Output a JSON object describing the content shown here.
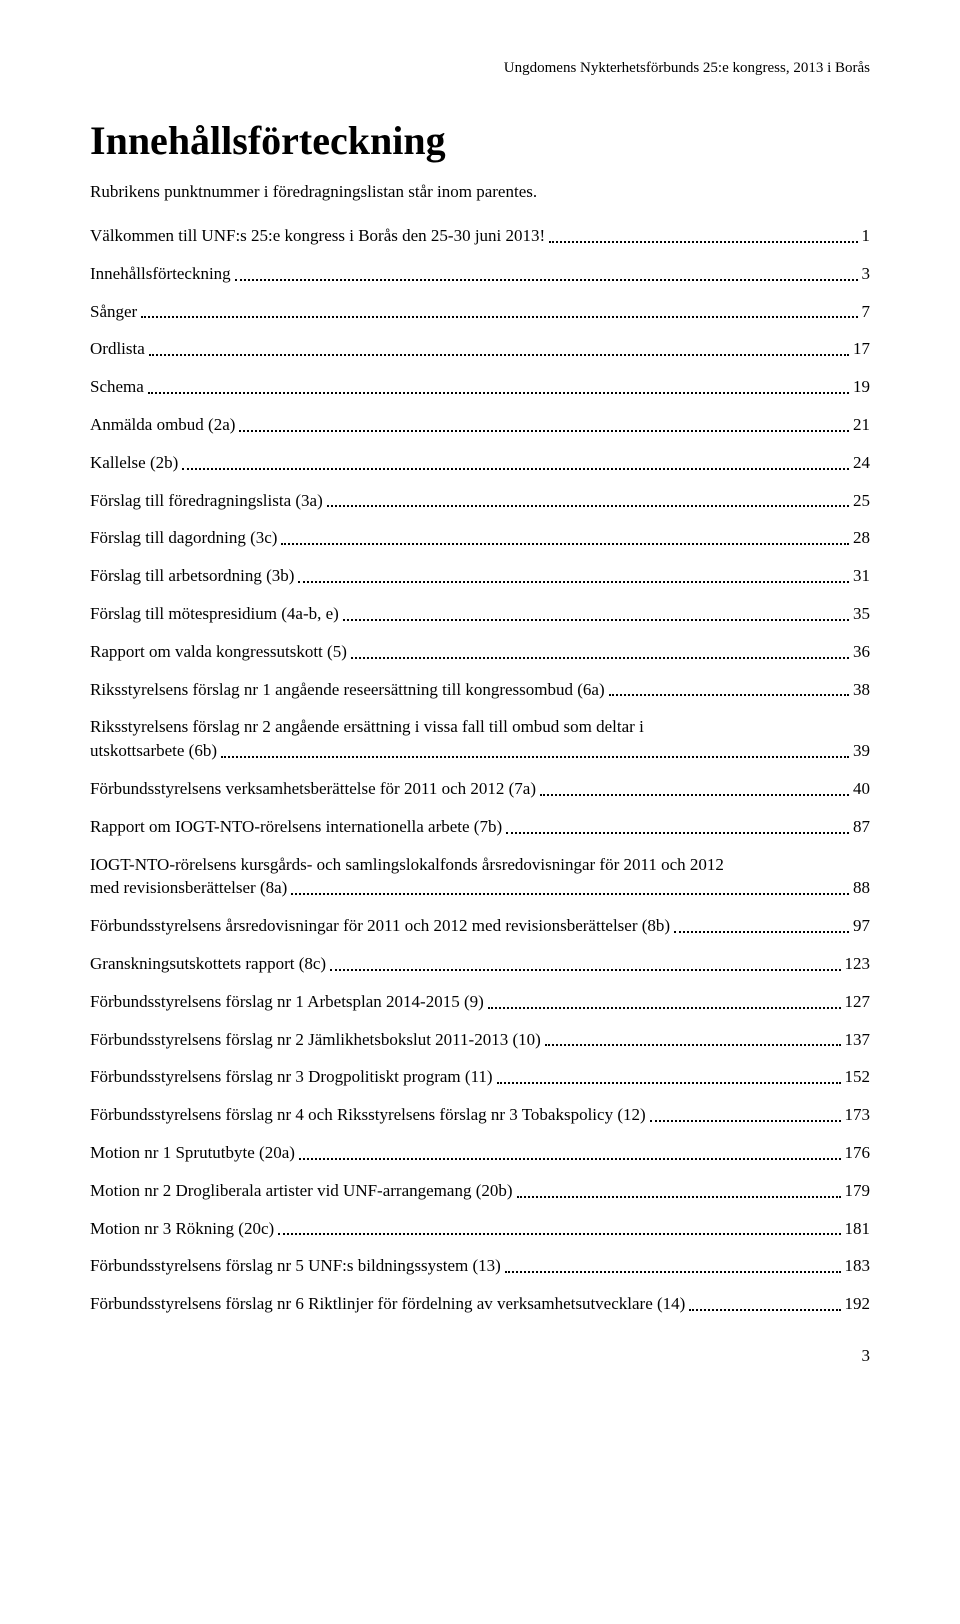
{
  "header": "Ungdomens Nykterhetsförbunds 25:e kongress, 2013 i Borås",
  "title": "Innehållsförteckning",
  "intro": "Rubrikens punktnummer i föredragningslistan står inom parentes.",
  "entries": [
    {
      "text": "Välkommen till UNF:s 25:e kongress i Borås den 25-30 juni 2013!",
      "page": "1"
    },
    {
      "text": "Innehållsförteckning",
      "page": "3"
    },
    {
      "text": "Sånger",
      "page": "7"
    },
    {
      "text": "Ordlista",
      "page": "17"
    },
    {
      "text": "Schema",
      "page": "19"
    },
    {
      "text": "Anmälda ombud (2a)",
      "page": "21"
    },
    {
      "text": "Kallelse (2b)",
      "page": "24"
    },
    {
      "text": "Förslag till föredragningslista (3a)",
      "page": "25"
    },
    {
      "text": "Förslag till dagordning (3c)",
      "page": "28"
    },
    {
      "text": "Förslag till arbetsordning (3b)",
      "page": "31"
    },
    {
      "text": "Förslag till mötespresidium (4a-b, e)",
      "page": "35"
    },
    {
      "text": "Rapport om valda kongressutskott (5)",
      "page": "36"
    },
    {
      "text": "Riksstyrelsens förslag nr 1 angående reseersättning till kongressombud (6a)",
      "page": "38"
    },
    {
      "line1": "Riksstyrelsens förslag nr 2 angående ersättning i vissa fall till ombud som deltar i",
      "line2": "utskottsarbete (6b)",
      "page": "39",
      "multiline": true
    },
    {
      "text": "Förbundsstyrelsens verksamhetsberättelse för 2011 och 2012 (7a)",
      "page": "40"
    },
    {
      "text": "Rapport om IOGT-NTO-rörelsens internationella arbete (7b)",
      "page": "87"
    },
    {
      "line1": "IOGT-NTO-rörelsens kursgårds- och samlingslokalfonds årsredovisningar för 2011 och 2012",
      "line2": "med revisionsberättelser (8a)",
      "page": "88",
      "multiline": true
    },
    {
      "text": "Förbundsstyrelsens årsredovisningar för 2011 och 2012 med revisionsberättelser (8b)",
      "page": "97"
    },
    {
      "text": "Granskningsutskottets rapport (8c)",
      "page": "123"
    },
    {
      "text": "Förbundsstyrelsens förslag nr 1 Arbetsplan 2014-2015 (9)",
      "page": "127"
    },
    {
      "text": "Förbundsstyrelsens förslag nr 2 Jämlikhetsbokslut 2011-2013 (10)",
      "page": "137"
    },
    {
      "text": "Förbundsstyrelsens förslag nr 3 Drogpolitiskt program (11)",
      "page": "152"
    },
    {
      "text": "Förbundsstyrelsens förslag nr 4 och Riksstyrelsens förslag nr 3 Tobakspolicy (12)",
      "page": "173"
    },
    {
      "text": "Motion nr 1 Sprututbyte (20a)",
      "page": "176"
    },
    {
      "text": "Motion nr 2 Drogliberala artister vid UNF-arrangemang (20b)",
      "page": "179"
    },
    {
      "text": "Motion nr 3 Rökning (20c)",
      "page": "181"
    },
    {
      "text": "Förbundsstyrelsens förslag nr 5 UNF:s bildningssystem (13)",
      "page": "183"
    },
    {
      "text": "Förbundsstyrelsens förslag nr 6 Riktlinjer för fördelning av verksamhetsutvecklare (14)",
      "page": "192"
    }
  ],
  "pageNumber": "3"
}
